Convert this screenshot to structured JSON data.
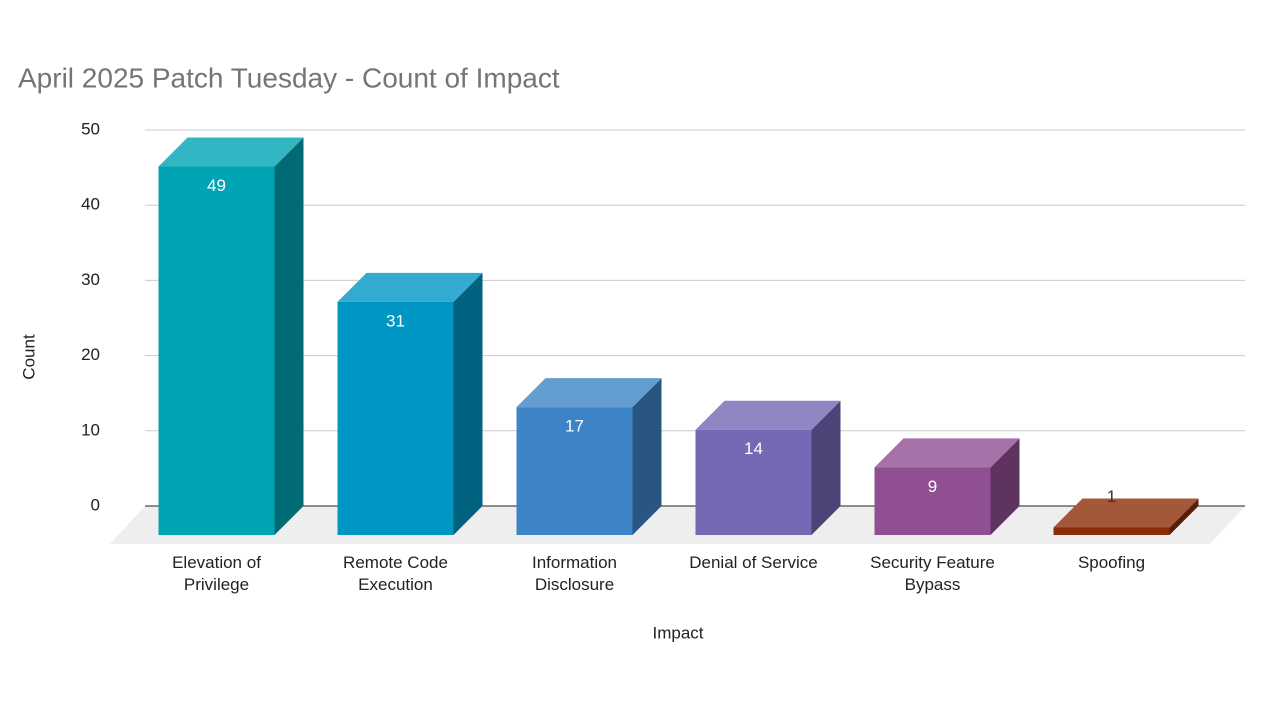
{
  "chart_data": {
    "type": "bar3d",
    "title": "April 2025 Patch Tuesday - Count of Impact",
    "x_label": "Impact",
    "y_label": "Count",
    "categories": [
      "Elevation of Privilege",
      "Remote Code Execution",
      "Information Disclosure",
      "Denial of Service",
      "Security Feature Bypass",
      "Spoofing"
    ],
    "values": [
      49,
      31,
      17,
      14,
      9,
      1
    ],
    "colors": [
      "#00a4b4",
      "#0096c4",
      "#3d84c6",
      "#7369b5",
      "#914f93",
      "#8b2e08"
    ],
    "ylim": [
      0,
      50
    ],
    "yticks": [
      0,
      10,
      20,
      30,
      40,
      50
    ],
    "grid": true
  }
}
